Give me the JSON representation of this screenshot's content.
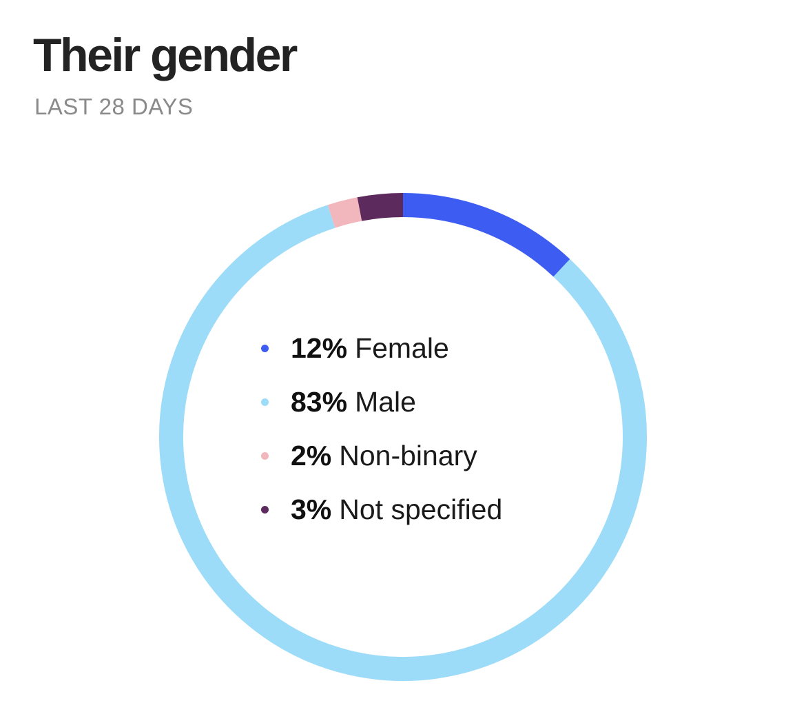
{
  "header": {
    "title": "Their gender",
    "subtitle": "LAST 28 DAYS"
  },
  "chart_data": {
    "type": "pie",
    "style": "donut",
    "start_angle": "top",
    "direction": "clockwise",
    "slices": [
      {
        "label": "Female",
        "value": 12,
        "pct_text": "12%",
        "color": "#3c5cf2"
      },
      {
        "label": "Male",
        "value": 83,
        "pct_text": "83%",
        "color": "#9ddcf8"
      },
      {
        "label": "Non-binary",
        "value": 2,
        "pct_text": "2%",
        "color": "#f2b6bd"
      },
      {
        "label": "Not specified",
        "value": 3,
        "pct_text": "3%",
        "color": "#5c2a5c"
      }
    ]
  }
}
